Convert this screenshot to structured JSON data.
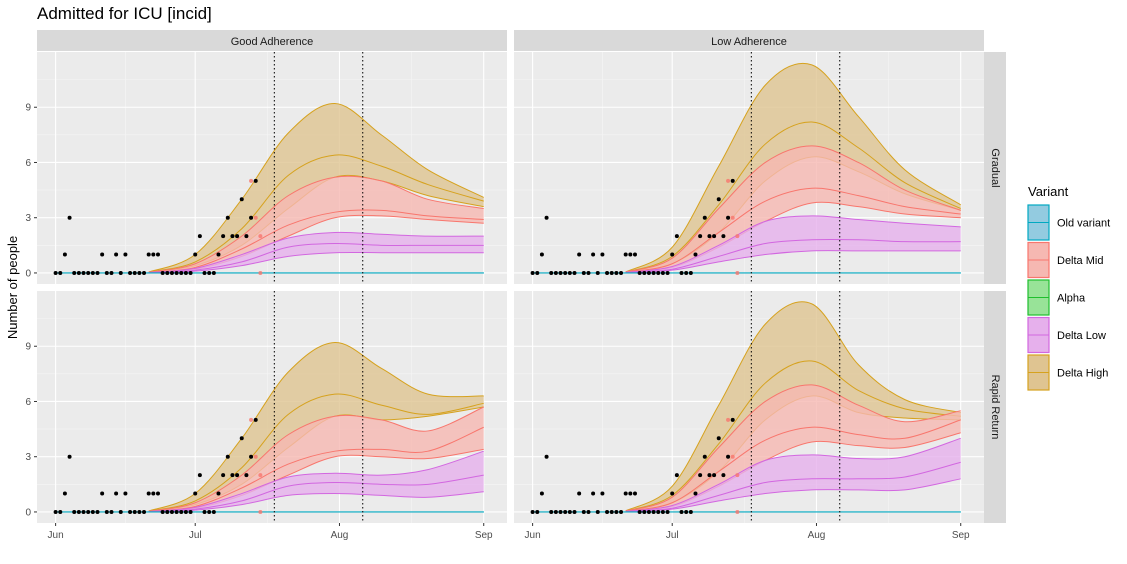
{
  "chart_data": {
    "type": "area",
    "title": "Admitted for ICU [incid]",
    "ylabel": "Number of people",
    "xlabel": "",
    "ylim": [
      -0.6,
      12
    ],
    "x_ticks": [
      {
        "label": "Jun",
        "day": 0
      },
      {
        "label": "Jul",
        "day": 30
      },
      {
        "label": "Aug",
        "day": 61
      },
      {
        "label": "Sep",
        "day": 92
      }
    ],
    "y_ticks": [
      0,
      3,
      6,
      9
    ],
    "x_range_days": [
      -4,
      97
    ],
    "vlines_days": [
      47,
      66
    ],
    "facet_columns": [
      "Good Adherence",
      "Low Adherence"
    ],
    "facet_rows": [
      "Gradual",
      "Rapid Return"
    ],
    "legend": {
      "title": "Variant",
      "placement": "right",
      "entries": [
        {
          "name": "Old variant",
          "color": "#00a9c1",
          "fill": "#93cbe0"
        },
        {
          "name": "Delta Mid",
          "color": "#f8766d",
          "fill": "#f6b8b2"
        },
        {
          "name": "Alpha",
          "color": "#1fbf2e",
          "fill": "#98e398"
        },
        {
          "name": "Delta Low",
          "color": "#d267e0",
          "fill": "#e6b0ec"
        },
        {
          "name": "Delta High",
          "color": "#d6a21e",
          "fill": "#dfc491"
        }
      ]
    },
    "observed_points": {
      "days": [
        0,
        1,
        2,
        3,
        4,
        5,
        6,
        7,
        8,
        9,
        10,
        11,
        12,
        13,
        14,
        15,
        16,
        17,
        18,
        19,
        20,
        21,
        22,
        23,
        24,
        25,
        26,
        27,
        28,
        29,
        30,
        31,
        32,
        33,
        34,
        35,
        36,
        37,
        38,
        39,
        40,
        41,
        42,
        43
      ],
      "values": [
        0,
        0,
        1,
        3,
        0,
        0,
        0,
        0,
        0,
        0,
        1,
        0,
        0,
        1,
        0,
        1,
        0,
        0,
        0,
        0,
        1,
        1,
        1,
        0,
        0,
        0,
        0,
        0,
        0,
        0,
        1,
        2,
        0,
        0,
        0,
        1,
        2,
        3,
        2,
        2,
        4,
        2,
        3,
        5
      ]
    },
    "observed_points_red": [
      {
        "day": 42,
        "value": 5
      },
      {
        "day": 43,
        "value": 3
      },
      {
        "day": 44,
        "value": 2
      },
      {
        "day": 44,
        "value": 0
      }
    ],
    "panels": [
      {
        "column": "Good Adherence",
        "row": "Gradual",
        "days": [
          20,
          30,
          40,
          50,
          60,
          70,
          80,
          92
        ],
        "Delta High": {
          "lower": [
            0.05,
            0.4,
            1.5,
            3.5,
            5.2,
            5.0,
            4.2,
            3.6
          ],
          "median": [
            0.05,
            0.6,
            2.4,
            5.3,
            6.4,
            5.8,
            4.8,
            3.9
          ],
          "upper": [
            0.05,
            1.0,
            4.0,
            7.6,
            9.2,
            7.5,
            5.6,
            4.1
          ]
        },
        "Delta Mid": {
          "lower": [
            0.03,
            0.2,
            0.9,
            2.0,
            3.0,
            3.1,
            2.9,
            2.7
          ],
          "median": [
            0.03,
            0.3,
            1.3,
            2.6,
            3.3,
            3.4,
            3.1,
            2.9
          ],
          "upper": [
            0.04,
            0.5,
            2.0,
            4.2,
            5.2,
            5.0,
            4.0,
            3.5
          ]
        },
        "Delta Low": {
          "lower": [
            0.01,
            0.1,
            0.4,
            0.9,
            1.1,
            1.1,
            1.1,
            1.1
          ],
          "median": [
            0.02,
            0.15,
            0.6,
            1.4,
            1.6,
            1.5,
            1.5,
            1.5
          ],
          "upper": [
            0.02,
            0.25,
            1.0,
            1.9,
            2.2,
            2.1,
            2.0,
            2.0
          ]
        },
        "Old variant": {
          "lower": [
            0,
            0,
            0,
            0,
            0,
            0,
            0,
            0
          ],
          "median": [
            0,
            0,
            0,
            0,
            0,
            0,
            0,
            0
          ],
          "upper": [
            0,
            0,
            0,
            0,
            0,
            0,
            0,
            0
          ]
        }
      },
      {
        "column": "Low Adherence",
        "row": "Gradual",
        "days": [
          20,
          30,
          40,
          50,
          60,
          70,
          80,
          92
        ],
        "Delta High": {
          "lower": [
            0.05,
            0.5,
            2.2,
            5.0,
            6.3,
            5.5,
            4.3,
            3.4
          ],
          "median": [
            0.05,
            0.9,
            3.7,
            7.0,
            8.2,
            6.8,
            4.9,
            3.5
          ],
          "upper": [
            0.06,
            1.4,
            5.8,
            10.2,
            11.3,
            8.5,
            5.6,
            3.7
          ]
        },
        "Delta Mid": {
          "lower": [
            0.03,
            0.3,
            1.4,
            2.8,
            3.8,
            3.6,
            3.2,
            3.0
          ],
          "median": [
            0.04,
            0.5,
            2.2,
            3.9,
            4.6,
            4.2,
            3.6,
            3.2
          ],
          "upper": [
            0.05,
            0.8,
            3.5,
            6.0,
            6.9,
            6.0,
            4.5,
            3.4
          ]
        },
        "Delta Low": {
          "lower": [
            0.01,
            0.15,
            0.6,
            1.0,
            1.2,
            1.2,
            1.2,
            1.2
          ],
          "median": [
            0.02,
            0.2,
            0.9,
            1.6,
            1.8,
            1.8,
            1.7,
            1.7
          ],
          "upper": [
            0.03,
            0.35,
            1.5,
            2.8,
            3.1,
            2.9,
            2.7,
            2.5
          ]
        },
        "Old variant": {
          "lower": [
            0,
            0,
            0,
            0,
            0,
            0,
            0,
            0
          ],
          "median": [
            0,
            0,
            0,
            0,
            0,
            0,
            0,
            0
          ],
          "upper": [
            0,
            0,
            0,
            0,
            0,
            0,
            0,
            0
          ]
        }
      },
      {
        "column": "Good Adherence",
        "row": "Rapid Return",
        "days": [
          20,
          30,
          40,
          50,
          60,
          70,
          80,
          92
        ],
        "Delta High": {
          "lower": [
            0.05,
            0.4,
            1.5,
            3.5,
            5.2,
            5.0,
            5.2,
            5.7
          ],
          "median": [
            0.05,
            0.6,
            2.4,
            5.3,
            6.4,
            5.8,
            5.3,
            5.9
          ],
          "upper": [
            0.05,
            1.0,
            4.0,
            7.6,
            9.2,
            7.8,
            6.4,
            6.3
          ]
        },
        "Delta Mid": {
          "lower": [
            0.03,
            0.2,
            0.9,
            2.0,
            3.0,
            3.0,
            2.9,
            3.4
          ],
          "median": [
            0.03,
            0.3,
            1.3,
            2.6,
            3.3,
            3.4,
            3.3,
            4.6
          ],
          "upper": [
            0.04,
            0.5,
            2.0,
            4.2,
            5.2,
            5.0,
            4.4,
            5.7
          ]
        },
        "Delta Low": {
          "lower": [
            0.01,
            0.1,
            0.4,
            0.9,
            1.0,
            0.9,
            0.8,
            1.1
          ],
          "median": [
            0.02,
            0.15,
            0.6,
            1.4,
            1.6,
            1.5,
            1.5,
            2.0
          ],
          "upper": [
            0.02,
            0.25,
            1.0,
            1.9,
            2.1,
            2.0,
            2.3,
            3.3
          ]
        },
        "Old variant": {
          "lower": [
            0,
            0,
            0,
            0,
            0,
            0,
            0,
            0
          ],
          "median": [
            0,
            0,
            0,
            0,
            0,
            0,
            0,
            0
          ],
          "upper": [
            0,
            0,
            0,
            0,
            0,
            0,
            0,
            0
          ]
        }
      },
      {
        "column": "Low Adherence",
        "row": "Rapid Return",
        "days": [
          20,
          30,
          40,
          50,
          60,
          70,
          80,
          92
        ],
        "Delta High": {
          "lower": [
            0.05,
            0.5,
            2.2,
            5.0,
            6.3,
            5.4,
            5.1,
            5.0
          ],
          "median": [
            0.05,
            0.9,
            3.7,
            7.0,
            8.2,
            6.6,
            5.6,
            5.2
          ],
          "upper": [
            0.06,
            1.4,
            5.8,
            10.2,
            11.3,
            8.0,
            6.1,
            5.4
          ]
        },
        "Delta Mid": {
          "lower": [
            0.03,
            0.3,
            1.4,
            2.8,
            3.8,
            3.6,
            3.5,
            4.3
          ],
          "median": [
            0.04,
            0.5,
            2.2,
            3.9,
            4.6,
            4.2,
            4.0,
            5.0
          ],
          "upper": [
            0.05,
            0.8,
            3.5,
            6.0,
            6.9,
            5.8,
            4.9,
            5.5
          ]
        },
        "Delta Low": {
          "lower": [
            0.01,
            0.15,
            0.6,
            1.0,
            1.2,
            1.2,
            1.2,
            1.8
          ],
          "median": [
            0.02,
            0.2,
            0.9,
            1.6,
            1.8,
            1.8,
            1.9,
            2.7
          ],
          "upper": [
            0.03,
            0.35,
            1.5,
            2.8,
            3.1,
            2.9,
            3.0,
            4.0
          ]
        },
        "Old variant": {
          "lower": [
            0,
            0,
            0,
            0,
            0,
            0,
            0,
            0
          ],
          "median": [
            0,
            0,
            0,
            0,
            0,
            0,
            0,
            0
          ],
          "upper": [
            0,
            0,
            0,
            0,
            0,
            0,
            0,
            0
          ]
        }
      }
    ]
  }
}
